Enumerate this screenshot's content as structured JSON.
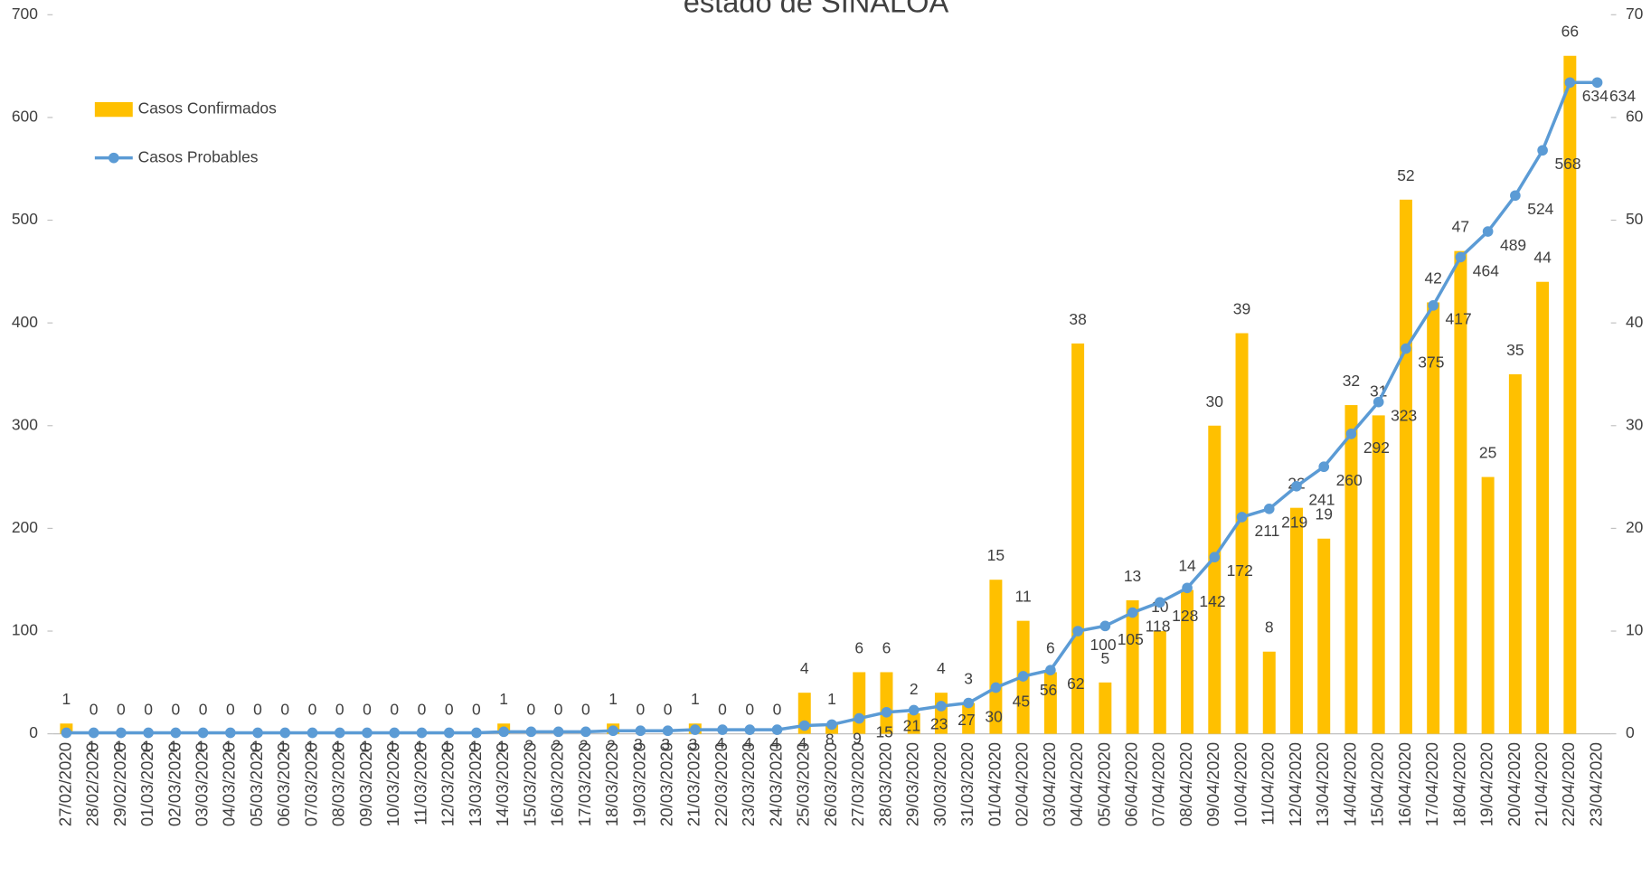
{
  "chart_data": {
    "type": "bar_line",
    "title": "estado de SINALOA",
    "categories": [
      "27/02/2020",
      "28/02/2020",
      "29/02/2020",
      "01/03/2020",
      "02/03/2020",
      "03/03/2020",
      "04/03/2020",
      "05/03/2020",
      "06/03/2020",
      "07/03/2020",
      "08/03/2020",
      "09/03/2020",
      "10/03/2020",
      "11/03/2020",
      "12/03/2020",
      "13/03/2020",
      "14/03/2020",
      "15/03/2020",
      "16/03/2020",
      "17/03/2020",
      "18/03/2020",
      "19/03/2020",
      "20/03/2020",
      "21/03/2020",
      "22/03/2020",
      "23/03/2020",
      "24/03/2020",
      "25/03/2020",
      "26/03/2020",
      "27/03/2020",
      "28/03/2020",
      "29/03/2020",
      "30/03/2020",
      "31/03/2020",
      "01/04/2020",
      "02/04/2020",
      "03/04/2020",
      "04/04/2020",
      "05/04/2020",
      "06/04/2020",
      "07/04/2020",
      "08/04/2020",
      "09/04/2020",
      "10/04/2020",
      "11/04/2020",
      "12/04/2020",
      "13/04/2020",
      "14/04/2020",
      "15/04/2020",
      "16/04/2020",
      "17/04/2020",
      "18/04/2020",
      "19/04/2020",
      "20/04/2020",
      "21/04/2020",
      "22/04/2020",
      "23/04/2020"
    ],
    "series": [
      {
        "name": "Casos Confirmados",
        "color": "#FFC000",
        "kind": "bar",
        "axis": "y2",
        "values": [
          1,
          0,
          0,
          0,
          0,
          0,
          0,
          0,
          0,
          0,
          0,
          0,
          0,
          0,
          0,
          0,
          1,
          0,
          0,
          0,
          1,
          0,
          0,
          1,
          0,
          0,
          0,
          4,
          1,
          6,
          6,
          2,
          4,
          3,
          15,
          11,
          6,
          38,
          5,
          13,
          10,
          14,
          30,
          39,
          8,
          22,
          19,
          32,
          31,
          52,
          42,
          47,
          25,
          35,
          44,
          66,
          null
        ]
      },
      {
        "name": "Casos Probables",
        "color": "#5B9BD5",
        "kind": "line",
        "values": [
          1,
          1,
          1,
          1,
          1,
          1,
          1,
          1,
          1,
          1,
          1,
          1,
          1,
          1,
          1,
          1,
          2,
          2,
          2,
          2,
          3,
          3,
          3,
          4,
          4,
          4,
          4,
          8,
          9,
          15,
          21,
          23,
          27,
          30,
          45,
          56,
          62,
          100,
          105,
          118,
          128,
          142,
          172,
          211,
          219,
          241,
          260,
          292,
          323,
          375,
          417,
          464,
          489,
          524,
          568,
          634,
          634
        ]
      }
    ],
    "ylim": [
      0,
      700
    ],
    "yticks": [
      0,
      100,
      200,
      300,
      400,
      500,
      600,
      700
    ],
    "y2lim": [
      0,
      70
    ],
    "y2ticks": [
      0,
      10,
      20,
      30,
      40,
      50,
      60,
      70
    ],
    "legend": "upper left"
  }
}
